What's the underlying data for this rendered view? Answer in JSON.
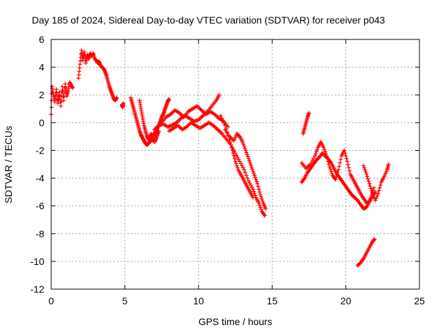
{
  "chart_data": {
    "type": "scatter",
    "title": "Day 185 of 2024, Sidereal Day-to-day VTEC variation (SDTVAR) for receiver p043",
    "xlabel": "GPS time / hours",
    "ylabel": "SDTVAR / TECUs",
    "xlim": [
      0,
      25
    ],
    "ylim": [
      -12,
      6
    ],
    "xticks": [
      "0",
      "5",
      "10",
      "15",
      "20",
      "25"
    ],
    "yticks": [
      "6",
      "4",
      "2",
      "0",
      "-2",
      "-4",
      "-6",
      "-8",
      "-10",
      "-12"
    ],
    "grid": true,
    "marker": "plus",
    "color": "#ff0000",
    "series": [
      {
        "name": "p043",
        "segments": [
          [
            [
              0.0,
              0.6
            ],
            [
              0.05,
              2.6
            ],
            [
              0.15,
              2.0
            ],
            [
              0.25,
              1.5
            ],
            [
              0.35,
              2.4
            ],
            [
              0.45,
              1.4
            ],
            [
              0.55,
              2.2
            ],
            [
              0.65,
              1.2
            ],
            [
              0.75,
              2.6
            ],
            [
              0.85,
              1.6
            ],
            [
              0.95,
              2.8
            ],
            [
              1.05,
              1.9
            ],
            [
              1.15,
              2.3
            ],
            [
              1.25,
              2.9
            ],
            [
              1.35,
              2.7
            ],
            [
              1.45,
              2.5
            ]
          ],
          [
            [
              1.85,
              3.2
            ],
            [
              1.95,
              4.2
            ],
            [
              2.05,
              5.2
            ],
            [
              2.15,
              4.5
            ],
            [
              2.25,
              5.1
            ],
            [
              2.35,
              4.3
            ],
            [
              2.45,
              4.9
            ],
            [
              2.55,
              4.6
            ],
            [
              2.65,
              5.0
            ],
            [
              2.75,
              4.8
            ],
            [
              2.85,
              5.0
            ],
            [
              2.95,
              4.6
            ],
            [
              3.05,
              4.5
            ],
            [
              3.15,
              4.3
            ],
            [
              3.25,
              4.4
            ],
            [
              3.35,
              4.1
            ],
            [
              3.45,
              4.0
            ],
            [
              3.55,
              3.9
            ],
            [
              3.65,
              3.7
            ],
            [
              3.75,
              3.4
            ],
            [
              3.85,
              3.0
            ],
            [
              3.95,
              2.6
            ],
            [
              4.05,
              2.3
            ],
            [
              4.15,
              2.0
            ],
            [
              4.25,
              1.7
            ],
            [
              4.35,
              1.6
            ],
            [
              4.45,
              1.8
            ]
          ],
          [
            [
              4.8,
              1.3
            ],
            [
              4.85,
              1.1
            ],
            [
              4.9,
              1.4
            ]
          ],
          [
            [
              5.4,
              1.8
            ],
            [
              5.5,
              1.4
            ],
            [
              5.6,
              1.0
            ],
            [
              5.7,
              0.6
            ],
            [
              5.8,
              0.2
            ],
            [
              5.9,
              -0.2
            ],
            [
              6.0,
              -0.6
            ],
            [
              6.1,
              -0.9
            ],
            [
              6.2,
              -1.1
            ],
            [
              6.3,
              -1.3
            ],
            [
              6.4,
              -1.5
            ],
            [
              6.5,
              -1.6
            ],
            [
              6.6,
              -1.5
            ],
            [
              6.7,
              -1.4
            ],
            [
              6.8,
              -1.2
            ],
            [
              6.9,
              -1.0
            ],
            [
              7.0,
              -0.8
            ],
            [
              7.1,
              -0.6
            ],
            [
              7.2,
              -0.4
            ],
            [
              7.3,
              -0.2
            ],
            [
              7.4,
              0.1
            ],
            [
              7.5,
              0.4
            ],
            [
              7.6,
              0.6
            ],
            [
              7.7,
              0.9
            ],
            [
              7.8,
              1.2
            ],
            [
              7.9,
              1.5
            ],
            [
              8.0,
              1.7
            ]
          ],
          [
            [
              6.0,
              1.6
            ],
            [
              6.1,
              1.0
            ],
            [
              6.2,
              0.4
            ],
            [
              6.3,
              -0.2
            ],
            [
              6.4,
              -0.6
            ],
            [
              6.5,
              -1.0
            ],
            [
              6.6,
              -1.2
            ],
            [
              6.7,
              -1.0
            ],
            [
              6.8,
              -0.8
            ],
            [
              6.9,
              -1.1
            ],
            [
              7.0,
              -1.4
            ],
            [
              7.1,
              -1.2
            ],
            [
              7.2,
              -0.9
            ],
            [
              7.3,
              -0.6
            ]
          ],
          [
            [
              7.0,
              -0.5
            ],
            [
              7.3,
              -0.2
            ],
            [
              7.6,
              -0.1
            ],
            [
              7.9,
              -0.3
            ],
            [
              8.2,
              -0.2
            ],
            [
              8.5,
              0.0
            ],
            [
              8.8,
              0.3
            ],
            [
              9.1,
              0.5
            ],
            [
              9.4,
              0.3
            ],
            [
              9.7,
              0.1
            ],
            [
              10.0,
              0.2
            ],
            [
              10.3,
              0.5
            ],
            [
              10.6,
              0.8
            ],
            [
              10.9,
              1.2
            ],
            [
              11.2,
              1.6
            ],
            [
              11.4,
              2.0
            ]
          ],
          [
            [
              7.5,
              0.0
            ],
            [
              7.8,
              0.4
            ],
            [
              8.1,
              0.6
            ],
            [
              8.4,
              0.9
            ],
            [
              8.7,
              0.7
            ],
            [
              9.0,
              0.4
            ],
            [
              9.3,
              0.8
            ],
            [
              9.6,
              1.0
            ],
            [
              9.9,
              1.2
            ],
            [
              10.2,
              0.9
            ],
            [
              10.5,
              0.6
            ],
            [
              10.8,
              0.8
            ],
            [
              11.1,
              0.6
            ],
            [
              11.4,
              0.3
            ],
            [
              11.7,
              0.1
            ],
            [
              12.0,
              -0.3
            ]
          ],
          [
            [
              8.0,
              -0.6
            ],
            [
              8.3,
              -0.4
            ],
            [
              8.6,
              -0.2
            ],
            [
              8.9,
              -0.5
            ],
            [
              9.2,
              -0.3
            ],
            [
              9.5,
              0.0
            ],
            [
              9.8,
              -0.2
            ],
            [
              10.1,
              -0.4
            ],
            [
              10.4,
              -0.2
            ],
            [
              10.7,
              0.0
            ],
            [
              11.0,
              -0.2
            ],
            [
              11.3,
              -0.5
            ],
            [
              11.6,
              -0.8
            ],
            [
              11.9,
              -1.2
            ],
            [
              12.2,
              -1.6
            ],
            [
              12.5,
              -2.2
            ],
            [
              12.8,
              -2.8
            ],
            [
              13.1,
              -3.4
            ],
            [
              13.4,
              -4.2
            ],
            [
              13.7,
              -4.8
            ],
            [
              13.9,
              -5.4
            ],
            [
              14.1,
              -5.8
            ],
            [
              14.3,
              -6.4
            ],
            [
              14.5,
              -6.7
            ]
          ],
          [
            [
              11.8,
              -0.5
            ],
            [
              12.1,
              -1.0
            ],
            [
              12.4,
              -1.3
            ],
            [
              12.6,
              -0.8
            ],
            [
              12.8,
              -1.0
            ],
            [
              13.0,
              -1.4
            ],
            [
              13.2,
              -2.0
            ],
            [
              13.4,
              -2.6
            ],
            [
              13.6,
              -3.2
            ],
            [
              13.8,
              -3.8
            ],
            [
              14.0,
              -4.4
            ],
            [
              14.2,
              -5.2
            ],
            [
              14.4,
              -5.8
            ],
            [
              14.55,
              -6.2
            ]
          ],
          [
            [
              11.5,
              0.5
            ],
            [
              11.8,
              -0.2
            ],
            [
              12.1,
              -1.2
            ],
            [
              12.3,
              -2.0
            ],
            [
              12.5,
              -2.8
            ],
            [
              12.7,
              -3.4
            ],
            [
              12.9,
              -3.8
            ],
            [
              13.1,
              -4.2
            ],
            [
              13.3,
              -4.6
            ],
            [
              13.5,
              -5.0
            ],
            [
              13.7,
              -5.4
            ]
          ],
          [
            [
              17.0,
              -4.3
            ],
            [
              17.2,
              -4.0
            ],
            [
              17.4,
              -3.6
            ],
            [
              17.6,
              -3.3
            ],
            [
              17.8,
              -3.0
            ],
            [
              18.0,
              -2.7
            ],
            [
              18.2,
              -2.5
            ],
            [
              18.4,
              -2.2
            ],
            [
              18.6,
              -2.4
            ],
            [
              18.8,
              -2.6
            ],
            [
              19.0,
              -2.9
            ],
            [
              19.2,
              -3.3
            ],
            [
              19.4,
              -3.7
            ],
            [
              19.6,
              -4.0
            ],
            [
              19.8,
              -4.3
            ],
            [
              20.0,
              -4.6
            ],
            [
              20.2,
              -4.9
            ],
            [
              20.4,
              -5.2
            ],
            [
              20.6,
              -5.4
            ],
            [
              20.8,
              -5.6
            ],
            [
              21.0,
              -5.9
            ],
            [
              21.2,
              -6.2
            ],
            [
              21.4,
              -6.1
            ],
            [
              21.6,
              -5.7
            ],
            [
              21.8,
              -5.3
            ],
            [
              22.0,
              -5.0
            ]
          ],
          [
            [
              17.0,
              -2.9
            ],
            [
              17.3,
              -3.3
            ],
            [
              17.6,
              -3.0
            ],
            [
              17.9,
              -2.4
            ],
            [
              18.1,
              -1.8
            ],
            [
              18.3,
              -1.4
            ],
            [
              18.5,
              -1.8
            ],
            [
              18.7,
              -2.4
            ],
            [
              18.9,
              -3.2
            ],
            [
              19.1,
              -3.8
            ],
            [
              19.3,
              -4.1
            ],
            [
              19.5,
              -3.4
            ],
            [
              19.7,
              -2.4
            ],
            [
              19.9,
              -2.0
            ],
            [
              20.1,
              -2.8
            ],
            [
              20.3,
              -3.7
            ],
            [
              20.5,
              -4.1
            ],
            [
              20.7,
              -4.5
            ],
            [
              20.9,
              -4.9
            ],
            [
              21.1,
              -5.3
            ],
            [
              21.3,
              -5.6
            ],
            [
              21.5,
              -5.9
            ],
            [
              21.7,
              -5.4
            ],
            [
              21.9,
              -4.7
            ]
          ],
          [
            [
              17.1,
              -0.8
            ],
            [
              17.2,
              -0.4
            ],
            [
              17.3,
              0.0
            ],
            [
              17.4,
              0.4
            ],
            [
              17.5,
              0.7
            ]
          ],
          [
            [
              21.2,
              -3.1
            ],
            [
              21.4,
              -3.7
            ],
            [
              21.6,
              -4.4
            ],
            [
              21.8,
              -5.1
            ],
            [
              22.0,
              -5.6
            ],
            [
              22.2,
              -5.1
            ],
            [
              22.4,
              -4.3
            ],
            [
              22.6,
              -3.9
            ],
            [
              22.8,
              -3.4
            ],
            [
              22.9,
              -3.0
            ]
          ],
          [
            [
              20.8,
              -10.3
            ],
            [
              21.0,
              -10.1
            ],
            [
              21.2,
              -9.8
            ],
            [
              21.4,
              -9.4
            ],
            [
              21.6,
              -9.0
            ],
            [
              21.8,
              -8.6
            ],
            [
              21.95,
              -8.4
            ]
          ]
        ]
      }
    ]
  }
}
